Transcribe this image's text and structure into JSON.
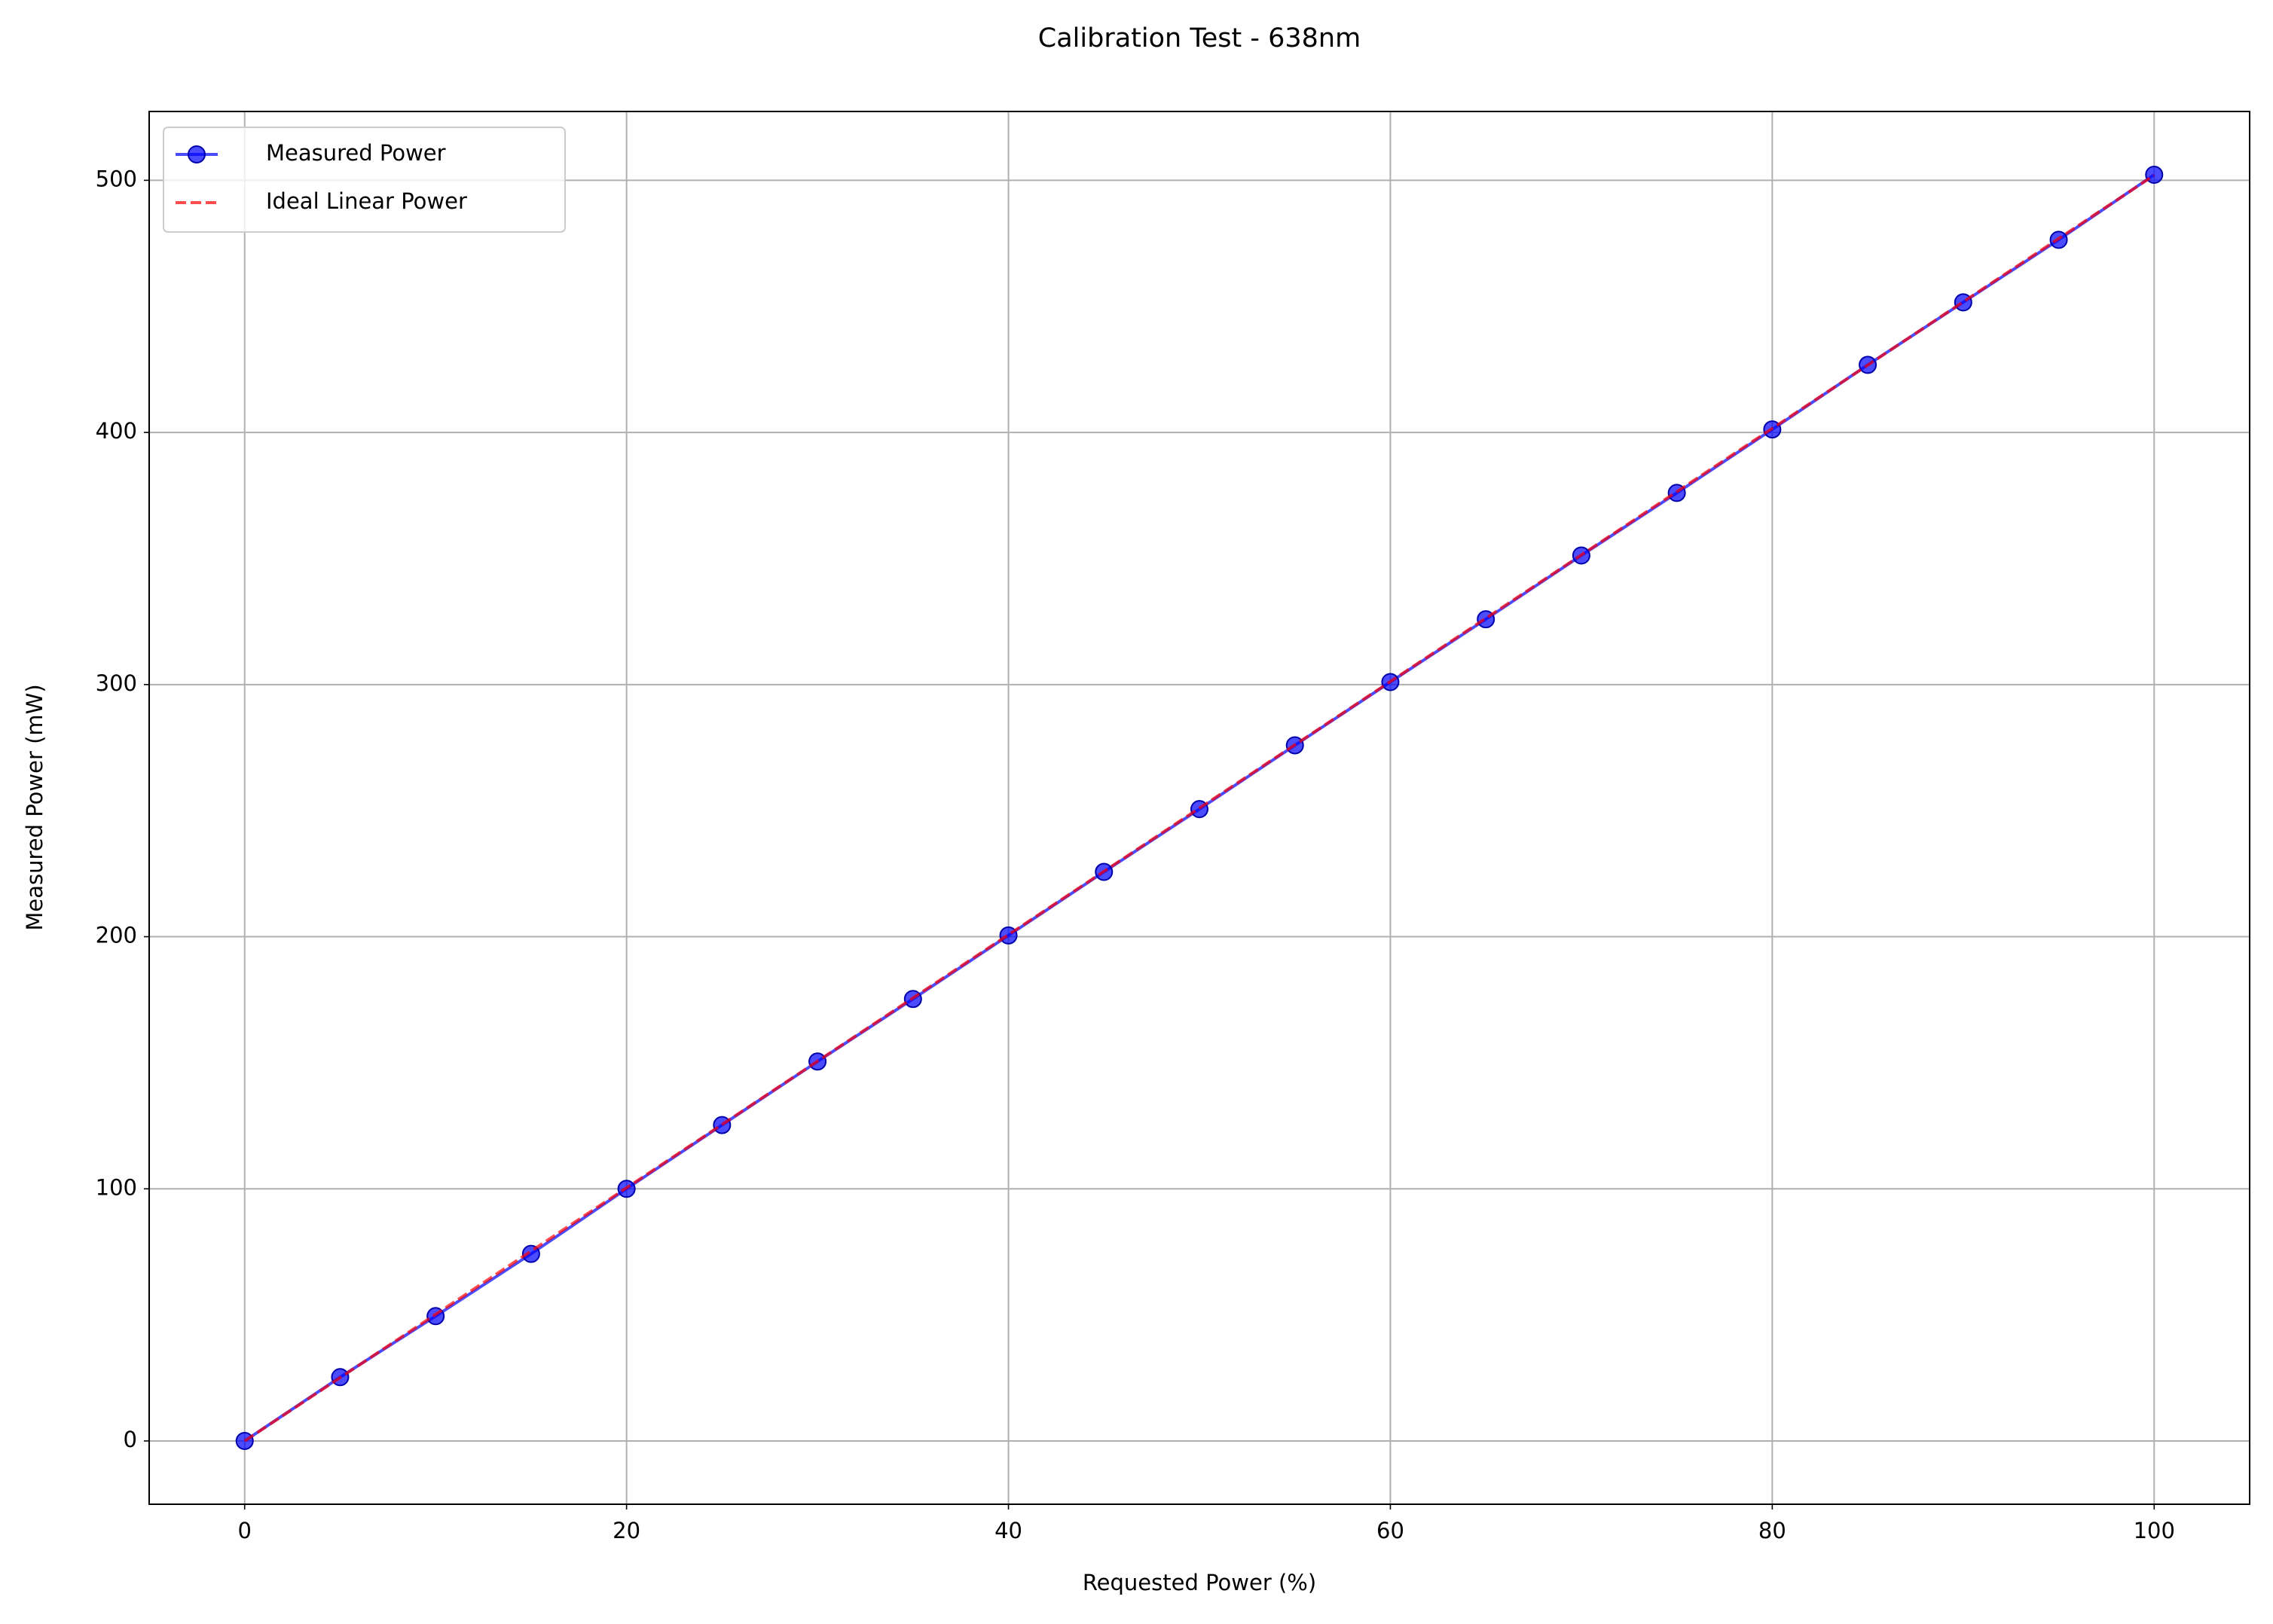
{
  "chart_data": {
    "type": "line",
    "title": "Calibration Test - 638nm",
    "x_label": "Requested Power (%)",
    "y_label": "Measured Power (mW)",
    "x": [
      0,
      5,
      10,
      15,
      20,
      25,
      30,
      35,
      40,
      45,
      50,
      55,
      60,
      65,
      70,
      75,
      80,
      85,
      90,
      95,
      100
    ],
    "series": [
      {
        "name": "Measured Power",
        "color": "#0000ff",
        "style": "solid",
        "marker": true,
        "values": [
          0,
          25.3,
          49.5,
          74.2,
          100,
          125.3,
          150.5,
          175.3,
          200.5,
          225.7,
          250.6,
          275.9,
          301,
          325.9,
          351.2,
          376,
          401.2,
          426.8,
          451.6,
          476.4,
          502.2
        ]
      },
      {
        "name": "Ideal Linear Power",
        "color": "#ff0000",
        "style": "dashed",
        "marker": false,
        "values": [
          0,
          25.1,
          50.2,
          75.3,
          100.4,
          125.5,
          150.6,
          175.7,
          200.8,
          225.9,
          251,
          276.1,
          301.2,
          326.3,
          351.4,
          376.5,
          401.6,
          426.7,
          451.8,
          476.9,
          502
        ]
      }
    ],
    "xlim": [
      -5,
      105
    ],
    "ylim": [
      -25.1,
      527.3
    ],
    "xticks": [
      0,
      20,
      40,
      60,
      80,
      100
    ],
    "yticks": [
      0,
      100,
      200,
      300,
      400,
      500
    ],
    "grid": true,
    "legend": "upper left"
  }
}
